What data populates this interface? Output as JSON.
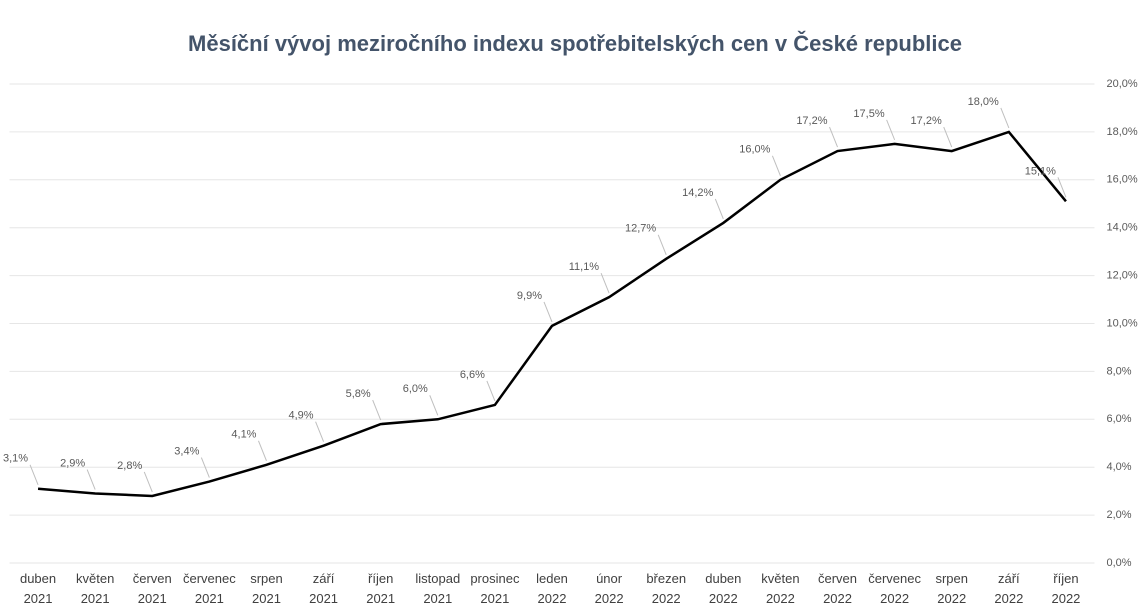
{
  "chart_data": {
    "type": "line",
    "title": "Měsíční vývoj meziročního indexu spotřebitelských cen v České republice",
    "categories": [
      "duben 2021",
      "květen 2021",
      "červen 2021",
      "červenec 2021",
      "srpen 2021",
      "září 2021",
      "říjen 2021",
      "listopad 2021",
      "prosinec 2021",
      "leden 2022",
      "únor 2022",
      "březen 2022",
      "duben 2022",
      "květen 2022",
      "červen 2022",
      "červenec 2022",
      "srpen 2022",
      "září 2022",
      "říjen 2022"
    ],
    "series": [
      {
        "color": "#000000",
        "values": [
          3.1,
          2.9,
          2.8,
          3.4,
          4.1,
          4.9,
          5.8,
          6.0,
          6.6,
          9.9,
          11.1,
          12.7,
          14.2,
          16.0,
          17.2,
          17.5,
          17.2,
          18.0,
          15.1
        ],
        "value_labels": [
          "3,1%",
          "2,9%",
          "2,8%",
          "3,4%",
          "4,1%",
          "4,9%",
          "5,8%",
          "6,0%",
          "6,6%",
          "9,9%",
          "11,1%",
          "12,7%",
          "14,2%",
          "16,0%",
          "17,2%",
          "17,5%",
          "17,2%",
          "18,0%",
          "15,1%"
        ]
      }
    ],
    "ylim": [
      0,
      20
    ],
    "yticks": [
      {
        "value": 0,
        "label": "0,0%"
      },
      {
        "value": 2,
        "label": "2,0%"
      },
      {
        "value": 4,
        "label": "4,0%"
      },
      {
        "value": 6,
        "label": "6,0%"
      },
      {
        "value": 8,
        "label": "8,0%"
      },
      {
        "value": 10,
        "label": "10,0%"
      },
      {
        "value": 12,
        "label": "12,0%"
      },
      {
        "value": 14,
        "label": "14,0%"
      },
      {
        "value": 16,
        "label": "16,0%"
      },
      {
        "value": 18,
        "label": "18,0%"
      },
      {
        "value": 20,
        "label": "20,0%"
      }
    ],
    "grid": true,
    "y_axis_side": "right"
  }
}
